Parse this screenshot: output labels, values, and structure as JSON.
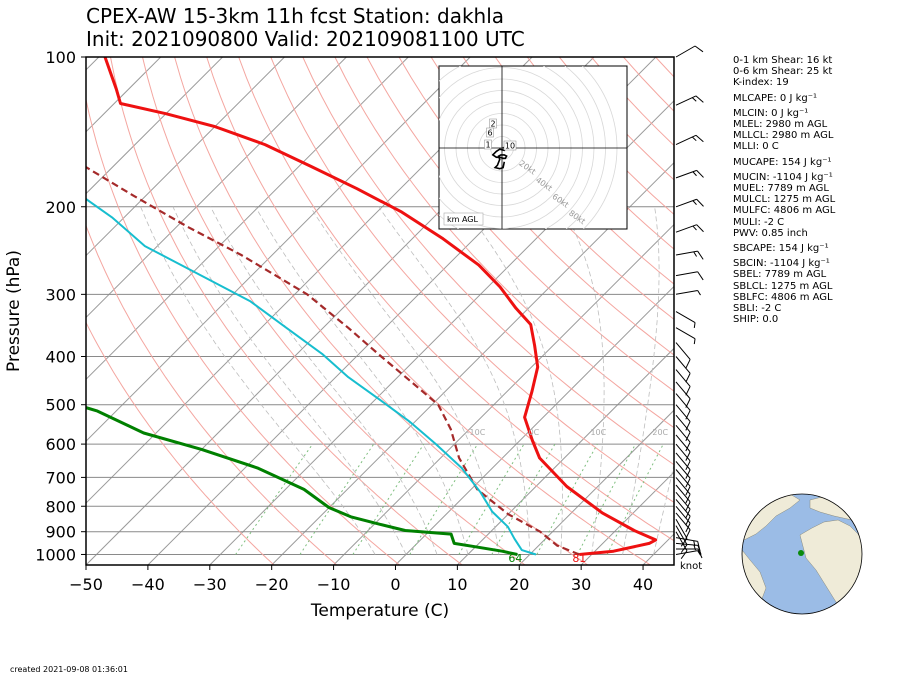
{
  "title_line1": "CPEX-AW 15-3km  11h fcst  Station: dakhla",
  "title_line2": "Init: 2021090800  Valid: 202109081100 UTC",
  "created": "created 2021-09-08 01:36:01",
  "stats": [
    "0-1 km Shear: 16 kt",
    "0-6 km Shear: 25 kt",
    "K-index: 19",
    "MLCAPE: 0 J kg⁻¹",
    "MLCIN: 0 J kg⁻¹",
    "MLEL: 2980 m AGL",
    "MLLCL: 2980 m AGL",
    "MLLI: 0 C",
    "MUCAPE: 154 J kg⁻¹",
    "MUCIN: -1104 J kg⁻¹",
    "MUEL: 7789 m AGL",
    "MULCL: 1275 m AGL",
    "MULFC: 4806 m AGL",
    "MULI: -2 C",
    "PWV: 0.85 inch",
    "SBCAPE: 154 J kg⁻¹",
    "SBCIN: -1104 J kg⁻¹",
    "SBEL: 7789 m AGL",
    "SBLCL: 1275 m AGL",
    "SBLFC: 4806 m AGL",
    "SBLI: -2 C",
    "SHIP: 0.0"
  ],
  "chart_data": {
    "type": "line",
    "xlabel": "Temperature (C)",
    "ylabel": "Pressure (hPa)",
    "xlim": [
      -50,
      45
    ],
    "ylim": [
      1050,
      100
    ],
    "y_scale": "log",
    "x_skew": "skew-T",
    "xticks": [
      -50,
      -40,
      -30,
      -20,
      -10,
      0,
      10,
      20,
      30,
      40
    ],
    "yticks": [
      100,
      200,
      300,
      400,
      500,
      600,
      700,
      800,
      900,
      1000
    ],
    "grid": true,
    "surface_dewpoint_label": "64",
    "surface_temperature_label": "81",
    "wind_units": "knot",
    "series": [
      {
        "id": "temperature",
        "color": "#ee1111",
        "points": [
          [
            28,
            1000
          ],
          [
            33,
            985
          ],
          [
            37.5,
            950
          ],
          [
            38,
            935
          ],
          [
            33,
            895
          ],
          [
            25,
            825
          ],
          [
            15,
            730
          ],
          [
            6,
            640
          ],
          [
            2,
            590
          ],
          [
            -3,
            530
          ],
          [
            -6,
            470
          ],
          [
            -9,
            420
          ],
          [
            -13,
            380
          ],
          [
            -17,
            345
          ],
          [
            -22,
            320
          ],
          [
            -28,
            290
          ],
          [
            -35,
            262
          ],
          [
            -45,
            232
          ],
          [
            -56,
            205
          ],
          [
            -67,
            184
          ],
          [
            -78,
            166
          ],
          [
            -89,
            150
          ],
          [
            -100,
            138
          ],
          [
            -110,
            130
          ],
          [
            -119,
            124
          ],
          [
            -122,
            116
          ],
          [
            -129,
            100
          ]
        ]
      },
      {
        "id": "dewpoint",
        "color": "#008000",
        "points": [
          [
            18,
            1000
          ],
          [
            15,
            985
          ],
          [
            10,
            965
          ],
          [
            6,
            950
          ],
          [
            4,
            910
          ],
          [
            -4,
            895
          ],
          [
            -9,
            870
          ],
          [
            -15,
            840
          ],
          [
            -20,
            805
          ],
          [
            -27,
            740
          ],
          [
            -38,
            670
          ],
          [
            -50,
            615
          ],
          [
            -62,
            570
          ],
          [
            -73,
            515
          ],
          [
            -90,
            460
          ],
          [
            -98,
            440
          ],
          [
            -102,
            420
          ],
          [
            -102,
            395
          ],
          [
            -106,
            372
          ],
          [
            -112,
            352
          ],
          [
            -117,
            330
          ],
          [
            -122,
            300
          ],
          [
            -131,
            262
          ],
          [
            -140,
            232
          ],
          [
            -152,
            222
          ],
          [
            -162,
            200
          ],
          [
            -171,
            182
          ],
          [
            -178,
            160
          ],
          [
            -186,
            138
          ],
          [
            -190,
            122
          ],
          [
            -194,
            100
          ]
        ]
      },
      {
        "id": "parcel",
        "color": "#a52a2a",
        "dash": "7,4",
        "points": [
          [
            28,
            1000
          ],
          [
            23,
            960
          ],
          [
            18,
            900
          ],
          [
            10,
            830
          ],
          [
            1,
            740
          ],
          [
            -7,
            640
          ],
          [
            -13,
            560
          ],
          [
            -19,
            500
          ],
          [
            -27,
            450
          ],
          [
            -36,
            400
          ],
          [
            -46,
            350
          ],
          [
            -58,
            300
          ],
          [
            -75,
            250
          ],
          [
            -88,
            220
          ],
          [
            -102,
            190
          ],
          [
            -118,
            160
          ],
          [
            -135,
            130
          ],
          [
            -149,
            110
          ],
          [
            -158,
            100
          ]
        ]
      },
      {
        "id": "cyan_profile",
        "color": "#17becf",
        "points": [
          [
            21,
            1000
          ],
          [
            18,
            980
          ],
          [
            15,
            930
          ],
          [
            12,
            880
          ],
          [
            7,
            820
          ],
          [
            2,
            750
          ],
          [
            -5,
            670
          ],
          [
            -13,
            600
          ],
          [
            -21,
            540
          ],
          [
            -29,
            490
          ],
          [
            -38,
            440
          ],
          [
            -46,
            395
          ],
          [
            -56,
            350
          ],
          [
            -66,
            310
          ],
          [
            -80,
            270
          ],
          [
            -92,
            240
          ],
          [
            -102,
            210
          ],
          [
            -115,
            180
          ],
          [
            -128,
            155
          ],
          [
            -142,
            130
          ],
          [
            -150,
            118
          ],
          [
            -155,
            112
          ],
          [
            -159,
            100
          ]
        ]
      }
    ],
    "isotherm_labels": [
      "-10C",
      "0C",
      "10C",
      "20C"
    ],
    "dry_adiabats_K": [
      250,
      260,
      270,
      280,
      290,
      300,
      310,
      320,
      330,
      340,
      350,
      360,
      370,
      380,
      390,
      400,
      410,
      420,
      430,
      440,
      450
    ],
    "moist_adiabats_C": [
      -5,
      0,
      5,
      10,
      15,
      20,
      25,
      30,
      35,
      40
    ],
    "mixing_ratio_gkg": [
      0.4,
      1,
      2,
      4,
      7,
      10,
      16,
      24,
      32
    ],
    "wind_barbs": [
      [
        1000,
        5,
        260
      ],
      [
        975,
        10,
        270
      ],
      [
        950,
        15,
        275
      ],
      [
        925,
        15,
        280
      ],
      [
        900,
        10,
        330
      ],
      [
        875,
        10,
        330
      ],
      [
        850,
        10,
        330
      ],
      [
        825,
        10,
        320
      ],
      [
        800,
        10,
        320
      ],
      [
        775,
        10,
        320
      ],
      [
        750,
        10,
        320
      ],
      [
        725,
        10,
        320
      ],
      [
        700,
        10,
        320
      ],
      [
        675,
        10,
        320
      ],
      [
        650,
        10,
        320
      ],
      [
        625,
        10,
        320
      ],
      [
        600,
        10,
        320
      ],
      [
        575,
        10,
        320
      ],
      [
        550,
        10,
        320
      ],
      [
        525,
        10,
        320
      ],
      [
        500,
        10,
        320
      ],
      [
        475,
        10,
        320
      ],
      [
        450,
        10,
        320
      ],
      [
        425,
        10,
        320
      ],
      [
        400,
        10,
        320
      ],
      [
        375,
        10,
        320
      ],
      [
        350,
        5,
        300
      ],
      [
        325,
        5,
        300
      ],
      [
        300,
        5,
        260
      ],
      [
        275,
        10,
        260
      ],
      [
        250,
        15,
        260
      ],
      [
        225,
        15,
        250
      ],
      [
        200,
        15,
        250
      ],
      [
        175,
        15,
        250
      ],
      [
        150,
        15,
        245
      ],
      [
        125,
        15,
        245
      ],
      [
        100,
        10,
        240
      ]
    ],
    "hodograph": {
      "speed_rings_labels": [
        "20kt",
        "40kt",
        "60kt",
        "80kt"
      ],
      "height_labels": [
        "2",
        "6",
        "1",
        "10"
      ],
      "legend": "km AGL",
      "points": [
        [
          0.5,
          0.2
        ],
        [
          2,
          -0.5
        ],
        [
          3,
          0.5
        ],
        [
          2,
          2
        ],
        [
          -2,
          1
        ],
        [
          -5,
          3
        ],
        [
          -8,
          6
        ],
        [
          -5,
          8
        ],
        [
          -2,
          8
        ],
        [
          1,
          9
        ],
        [
          3,
          9
        ],
        [
          4,
          7
        ],
        [
          2,
          6
        ],
        [
          -1,
          6
        ],
        [
          -3,
          7
        ],
        [
          -2,
          10
        ],
        [
          -4,
          15
        ],
        [
          -6,
          17
        ],
        [
          -2,
          18
        ],
        [
          1,
          17
        ],
        [
          2,
          12
        ]
      ]
    },
    "globe_station": "dakhla"
  }
}
